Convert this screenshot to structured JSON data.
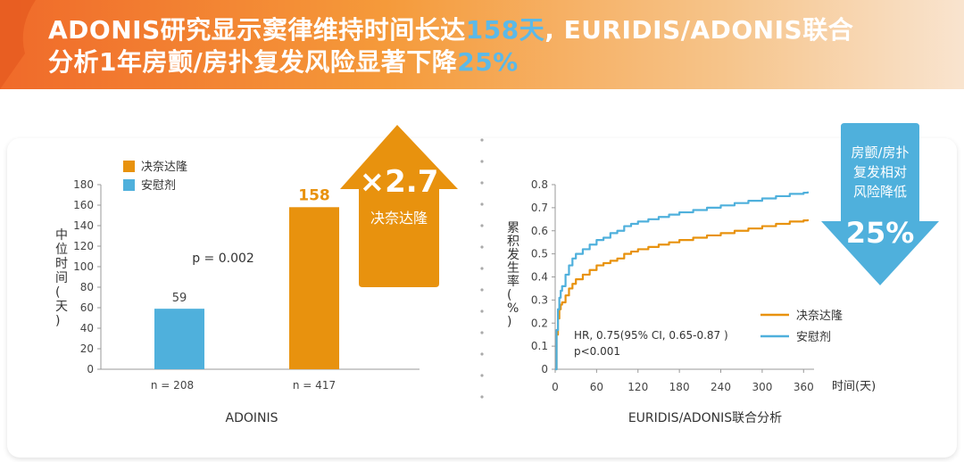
{
  "headline": {
    "line1_a": "ADONIS研究显示窦律维持时间长达",
    "line1_em": "158天",
    "line1_b": ", EURIDIS/ADONIS联合",
    "line2_a": "分析1年房颤/房扑复发风险显著下降",
    "line2_em": "25%"
  },
  "colors": {
    "dronedarone": "#e8920e",
    "placebo": "#4fb0dc",
    "banner_start": "#f06a2a"
  },
  "chart_data": [
    {
      "type": "bar",
      "title": "ADOINIS",
      "ylabel": "中位时间(天)",
      "ylim": [
        0,
        180
      ],
      "yticks": [
        0,
        20,
        40,
        60,
        80,
        100,
        120,
        140,
        160,
        180
      ],
      "legend": [
        "决奈达隆",
        "安慰剂"
      ],
      "legend_position": "top-left",
      "bars": [
        {
          "series": "安慰剂",
          "value": 59,
          "value_label": "59",
          "n_label": "n = 208",
          "color": "#4fb0dc"
        },
        {
          "series": "决奈达隆",
          "value": 158,
          "value_label": "158",
          "n_label": "n = 417",
          "color": "#e8920e"
        }
      ],
      "annotation": "p = 0.002",
      "callout": {
        "multiplier": "×2.7",
        "label": "决奈达隆"
      }
    },
    {
      "type": "line",
      "title": "EURIDIS/ADONIS联合分析",
      "xlabel": "时间(天)",
      "ylabel": "累积发生率(%)",
      "xlim": [
        0,
        370
      ],
      "ylim": [
        0,
        0.8
      ],
      "xticks": [
        0,
        60,
        120,
        180,
        240,
        300,
        360
      ],
      "yticks": [
        0,
        0.1,
        0.2,
        0.3,
        0.4,
        0.5,
        0.6,
        0.7,
        0.8
      ],
      "ytick_labels": [
        "0",
        "0.1",
        "0.2",
        "0.3",
        "0.4",
        "0.5",
        "0.6",
        "0.7",
        "0.8"
      ],
      "legend_position": "bottom-right",
      "annotation_line1": "HR, 0.75(95% CI, 0.65-0.87 )",
      "annotation_line2": "p<0.001",
      "series": [
        {
          "name": "决奈达隆",
          "color": "#e8920e",
          "x": [
            0,
            2,
            4,
            6,
            8,
            10,
            15,
            20,
            25,
            30,
            40,
            50,
            60,
            70,
            80,
            90,
            100,
            110,
            120,
            135,
            150,
            165,
            180,
            200,
            220,
            240,
            260,
            280,
            300,
            320,
            340,
            360,
            366
          ],
          "y": [
            0,
            0.15,
            0.22,
            0.26,
            0.28,
            0.29,
            0.32,
            0.35,
            0.37,
            0.39,
            0.41,
            0.43,
            0.45,
            0.46,
            0.47,
            0.48,
            0.5,
            0.51,
            0.52,
            0.53,
            0.54,
            0.55,
            0.56,
            0.57,
            0.58,
            0.59,
            0.6,
            0.61,
            0.62,
            0.63,
            0.64,
            0.645,
            0.65
          ]
        },
        {
          "name": "安慰剂",
          "color": "#4fb0dc",
          "x": [
            0,
            2,
            4,
            6,
            8,
            10,
            15,
            20,
            25,
            30,
            40,
            50,
            60,
            70,
            80,
            90,
            100,
            110,
            120,
            135,
            150,
            165,
            180,
            200,
            220,
            240,
            260,
            280,
            300,
            320,
            340,
            360,
            366
          ],
          "y": [
            0,
            0.17,
            0.26,
            0.31,
            0.34,
            0.36,
            0.41,
            0.45,
            0.48,
            0.5,
            0.52,
            0.54,
            0.56,
            0.57,
            0.59,
            0.6,
            0.62,
            0.63,
            0.64,
            0.65,
            0.66,
            0.67,
            0.68,
            0.69,
            0.7,
            0.71,
            0.72,
            0.73,
            0.74,
            0.75,
            0.76,
            0.765,
            0.77
          ]
        }
      ],
      "callout": {
        "text_lines": [
          "房颤/房扑",
          "复发相对",
          "风险降低"
        ],
        "value": "25%"
      }
    }
  ]
}
